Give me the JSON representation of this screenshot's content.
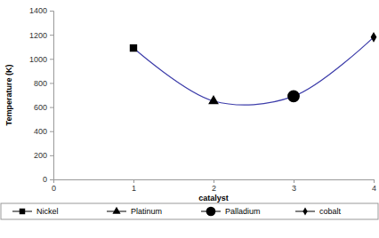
{
  "chart_data": {
    "type": "line",
    "x_label": "catalyst",
    "y_label": "Temperature (K)",
    "x": [
      1,
      2,
      3,
      4
    ],
    "xlim": [
      0,
      4
    ],
    "xticks": [
      0,
      1,
      2,
      3,
      4
    ],
    "ylim": [
      0,
      1400
    ],
    "yticks": [
      0,
      200,
      400,
      600,
      800,
      1000,
      1200,
      1400
    ],
    "color": "#3d3daa",
    "grid": false,
    "legend": "bottom",
    "series": [
      {
        "name": "Nickel",
        "color": "#000000",
        "marker": "square",
        "values": [
          1090,
          null,
          null,
          null
        ]
      },
      {
        "name": "Platinum",
        "color": "#000000",
        "marker": "triangle",
        "values": [
          null,
          650,
          null,
          null
        ]
      },
      {
        "name": "Palladium",
        "color": "#000000",
        "marker": "circle",
        "values": [
          null,
          null,
          690,
          null
        ]
      },
      {
        "name": "cobalt",
        "color": "#000000",
        "marker": "diamond",
        "values": [
          null,
          null,
          null,
          1180
        ]
      }
    ]
  }
}
